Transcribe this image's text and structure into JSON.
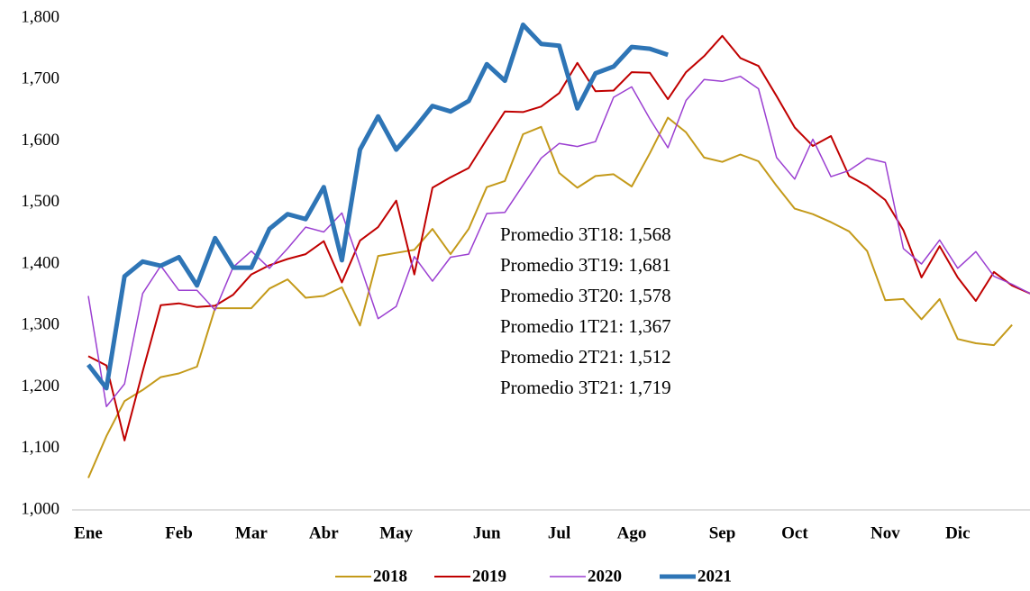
{
  "chart_data": {
    "type": "line",
    "categories": [
      "Ene",
      null,
      null,
      null,
      null,
      "Feb",
      null,
      null,
      null,
      "Mar",
      null,
      null,
      null,
      "Abr",
      null,
      null,
      null,
      "May",
      null,
      null,
      null,
      null,
      "Jun",
      null,
      null,
      null,
      "Jul",
      null,
      null,
      null,
      "Ago",
      null,
      null,
      null,
      null,
      "Sep",
      null,
      null,
      null,
      "Oct",
      null,
      null,
      null,
      null,
      "Nov",
      null,
      null,
      null,
      "Dic",
      null,
      null,
      null,
      null
    ],
    "series": [
      {
        "name": "2018",
        "color": "#c49a1a",
        "width": 2,
        "values": [
          1052,
          1120,
          1177,
          1195,
          1216,
          1222,
          1233,
          1328,
          1328,
          1328,
          1360,
          1375,
          1345,
          1348,
          1362,
          1300,
          1413,
          1418,
          1423,
          1457,
          1416,
          1457,
          1525,
          1535,
          1611,
          1623,
          1548,
          1524,
          1543,
          1546,
          1526,
          1580,
          1638,
          1614,
          1573,
          1566,
          1578,
          1567,
          1527,
          1490,
          1481,
          1468,
          1453,
          1421,
          1341,
          1343,
          1310,
          1343,
          1278,
          1271,
          1268,
          1301,
          null
        ]
      },
      {
        "name": "2019",
        "color": "#c00000",
        "width": 2,
        "values": [
          1250,
          1235,
          1113,
          1225,
          1333,
          1336,
          1330,
          1332,
          1350,
          1383,
          1398,
          1408,
          1416,
          1437,
          1370,
          1438,
          1460,
          1503,
          1383,
          1524,
          1541,
          1556,
          1603,
          1648,
          1647,
          1656,
          1678,
          1727,
          1681,
          1682,
          1712,
          1711,
          1668,
          1712,
          1738,
          1771,
          1735,
          1722,
          1673,
          1622,
          1592,
          1608,
          1543,
          1527,
          1504,
          1455,
          1378,
          1429,
          1378,
          1340,
          1387,
          1365,
          1352
        ]
      },
      {
        "name": "2020",
        "color": "#9b3fd1",
        "width": 1.5,
        "values": [
          1348,
          1168,
          1205,
          1352,
          1397,
          1357,
          1357,
          1325,
          1395,
          1421,
          1393,
          1425,
          1460,
          1452,
          1483,
          1398,
          1311,
          1331,
          1412,
          1372,
          1411,
          1416,
          1482,
          1484,
          1528,
          1572,
          1596,
          1591,
          1599,
          1671,
          1688,
          1636,
          1589,
          1666,
          1700,
          1697,
          1705,
          1685,
          1573,
          1538,
          1603,
          1542,
          1552,
          1572,
          1565,
          1425,
          1400,
          1439,
          1393,
          1420,
          1380,
          1367,
          1352
        ]
      },
      {
        "name": "2021",
        "color": "#2e75b6",
        "width": 5,
        "values": [
          1236,
          1198,
          1380,
          1404,
          1397,
          1411,
          1365,
          1442,
          1394,
          1394,
          1457,
          1481,
          1473,
          1525,
          1406,
          1586,
          1640,
          1586,
          1620,
          1657,
          1648,
          1665,
          1725,
          1698,
          1789,
          1758,
          1755,
          1653,
          1710,
          1721,
          1753,
          1750,
          1740,
          null,
          null,
          null,
          null,
          null,
          null,
          null,
          null,
          null,
          null,
          null,
          null,
          null,
          null,
          null,
          null,
          null,
          null,
          null,
          null
        ]
      }
    ],
    "annotations": [
      {
        "text": "Promedio 3T18: 1,568",
        "color": "#c49a1a"
      },
      {
        "text": "Promedio 3T19: 1,681",
        "color": "#c00000"
      },
      {
        "text": "Promedio 3T20: 1,578",
        "color": "#9b3fd1"
      },
      {
        "text": "Promedio 1T21: 1,367",
        "color": "#2e75b6"
      },
      {
        "text": "Promedio 2T21: 1,512",
        "color": "#2e75b6"
      },
      {
        "text": "Promedio 3T21: 1,719",
        "color": "#2e75b6"
      }
    ],
    "ylim": [
      1000,
      1800
    ],
    "yticks": [
      {
        "value": 1000,
        "label": "1,000"
      },
      {
        "value": 1100,
        "label": "1,100"
      },
      {
        "value": 1200,
        "label": "1,200"
      },
      {
        "value": 1300,
        "label": "1,300"
      },
      {
        "value": 1400,
        "label": "1,400"
      },
      {
        "value": 1500,
        "label": "1,500"
      },
      {
        "value": 1600,
        "label": "1,600"
      },
      {
        "value": 1700,
        "label": "1,700"
      },
      {
        "value": 1800,
        "label": "1,800"
      }
    ],
    "grid": false,
    "legend": "bottom"
  }
}
